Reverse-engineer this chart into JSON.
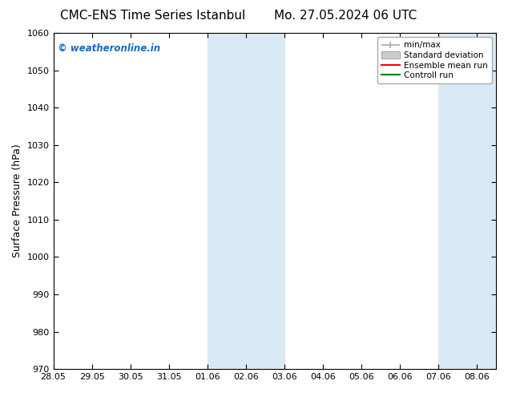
{
  "title_left": "CMC-ENS Time Series Istanbul",
  "title_right": "Mo. 27.05.2024 06 UTC",
  "ylabel": "Surface Pressure (hPa)",
  "ylim": [
    970,
    1060
  ],
  "yticks": [
    970,
    980,
    990,
    1000,
    1010,
    1020,
    1030,
    1040,
    1050,
    1060
  ],
  "xtick_labels": [
    "28.05",
    "29.05",
    "30.05",
    "31.05",
    "01.06",
    "02.06",
    "03.06",
    "04.06",
    "05.06",
    "06.06",
    "07.06",
    "08.06"
  ],
  "xtick_positions": [
    0,
    1,
    2,
    3,
    4,
    5,
    6,
    7,
    8,
    9,
    10,
    11
  ],
  "xlim": [
    0,
    11.5
  ],
  "shaded_bands": [
    {
      "x_start": 4.0,
      "x_end": 6.0
    },
    {
      "x_start": 10.0,
      "x_end": 11.5
    }
  ],
  "shade_color": "#daeaf5",
  "watermark_text": "© weatheronline.in",
  "watermark_color": "#1a6bbf",
  "legend_labels": [
    "min/max",
    "Standard deviation",
    "Ensemble mean run",
    "Controll run"
  ],
  "legend_line_color_minmax": "#aaaaaa",
  "legend_fill_color_std": "#cccccc",
  "legend_line_color_ensemble": "#ff0000",
  "legend_line_color_control": "#008000",
  "background_color": "#ffffff",
  "title_fontsize": 11,
  "tick_fontsize": 8,
  "ylabel_fontsize": 9,
  "spine_color": "#000000",
  "tick_color": "#000000"
}
